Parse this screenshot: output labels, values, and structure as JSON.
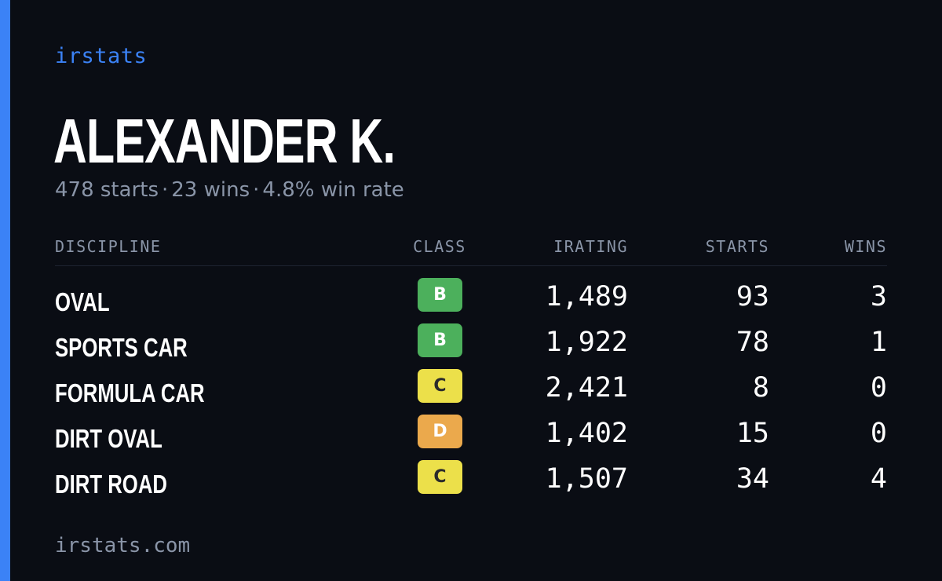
{
  "brand": "irstats",
  "driver": {
    "name": "ALEXANDER K.",
    "starts": "478 starts",
    "wins": "23 wins",
    "win_rate": "4.8% win rate",
    "separator": "·"
  },
  "table": {
    "headers": {
      "discipline": "DISCIPLINE",
      "class": "CLASS",
      "irating": "IRATING",
      "starts": "STARTS",
      "wins": "WINS"
    },
    "rows": [
      {
        "discipline": "OVAL",
        "class": "B",
        "irating": "1,489",
        "starts": "93",
        "wins": "3"
      },
      {
        "discipline": "SPORTS CAR",
        "class": "B",
        "irating": "1,922",
        "starts": "78",
        "wins": "1"
      },
      {
        "discipline": "FORMULA CAR",
        "class": "C",
        "irating": "2,421",
        "starts": "8",
        "wins": "0"
      },
      {
        "discipline": "DIRT OVAL",
        "class": "D",
        "irating": "1,402",
        "starts": "15",
        "wins": "0"
      },
      {
        "discipline": "DIRT ROAD",
        "class": "C",
        "irating": "1,507",
        "starts": "34",
        "wins": "4"
      }
    ]
  },
  "class_colors": {
    "B": {
      "bg": "#4cb05c",
      "fg": "#ffffff"
    },
    "C": {
      "bg": "#ece04a",
      "fg": "#2b2b2b"
    },
    "D": {
      "bg": "#eba94c",
      "fg": "#ffffff"
    }
  },
  "colors": {
    "accent": "#3b82f6",
    "background": "#0a0d14",
    "muted_text": "#8a95a8"
  },
  "footer": "irstats.com"
}
